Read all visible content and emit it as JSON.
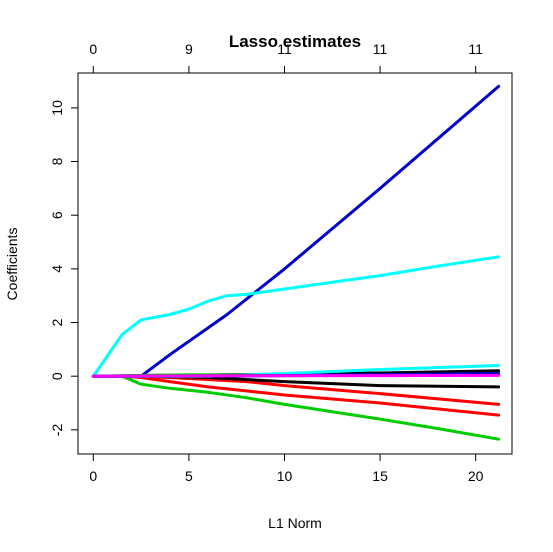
{
  "chart_data": {
    "type": "line",
    "title": "Lasso estimates",
    "xlabel": "L1 Norm",
    "ylabel": "Coefficients",
    "xlim": [
      -0.8,
      21.9
    ],
    "ylim": [
      -2.9,
      11.3
    ],
    "x_ticks": [
      0,
      5,
      10,
      15,
      20
    ],
    "y_ticks": [
      -2,
      0,
      2,
      4,
      6,
      8,
      10
    ],
    "top_axis": {
      "positions": [
        0,
        5,
        10,
        15,
        20
      ],
      "labels": [
        "0",
        "9",
        "11",
        "11",
        "11"
      ]
    },
    "grid": false,
    "series": [
      {
        "color": "#0000CC",
        "x": [
          0,
          2.5,
          4,
          7,
          10,
          15,
          21.2
        ],
        "y": [
          0,
          0,
          0.8,
          2.3,
          4.0,
          7.0,
          10.8
        ]
      },
      {
        "color": "#00FFFF",
        "x": [
          0,
          1.5,
          2.5,
          4,
          5,
          6,
          7,
          8,
          10,
          13,
          15,
          18,
          21.2
        ],
        "y": [
          0,
          1.55,
          2.1,
          2.3,
          2.5,
          2.8,
          3.0,
          3.05,
          3.25,
          3.55,
          3.75,
          4.1,
          4.45
        ]
      },
      {
        "color": "#00CC00",
        "x": [
          0,
          1.5,
          2.5,
          4,
          6,
          8,
          10,
          15,
          18,
          21.2
        ],
        "y": [
          0,
          0,
          -0.3,
          -0.45,
          -0.6,
          -0.8,
          -1.05,
          -1.6,
          -1.95,
          -2.35
        ]
      },
      {
        "color": "#FF0000",
        "x": [
          0,
          1.5,
          2.5,
          4,
          6,
          8,
          10,
          15,
          21.2
        ],
        "y": [
          0,
          0,
          -0.05,
          -0.2,
          -0.4,
          -0.55,
          -0.7,
          -1.0,
          -1.45
        ]
      },
      {
        "color": "#FF0000",
        "x": [
          0,
          2,
          4,
          8,
          10,
          15,
          21.2
        ],
        "y": [
          0,
          0,
          -0.05,
          -0.2,
          -0.35,
          -0.65,
          -1.05
        ]
      },
      {
        "color": "#000000",
        "x": [
          0,
          3,
          6,
          10,
          15,
          21.2
        ],
        "y": [
          0,
          0,
          -0.05,
          -0.2,
          -0.35,
          -0.4
        ]
      },
      {
        "color": "#000000",
        "x": [
          0,
          3,
          8,
          15,
          21.2
        ],
        "y": [
          0,
          0.03,
          0.06,
          0.12,
          0.2
        ]
      },
      {
        "color": "#00FFFF",
        "x": [
          0,
          6,
          10,
          15,
          21.2
        ],
        "y": [
          0,
          0,
          0.1,
          0.25,
          0.4
        ]
      },
      {
        "color": "#00CC00",
        "x": [
          0,
          5,
          10,
          21.2
        ],
        "y": [
          0,
          0.05,
          0.02,
          0.06
        ]
      },
      {
        "color": "#0000CC",
        "x": [
          0,
          8,
          21.2
        ],
        "y": [
          0,
          0.01,
          0.1
        ]
      },
      {
        "color": "#FF00FF",
        "x": [
          0,
          10,
          21.2
        ],
        "y": [
          0,
          0.02,
          0.03
        ]
      }
    ]
  }
}
